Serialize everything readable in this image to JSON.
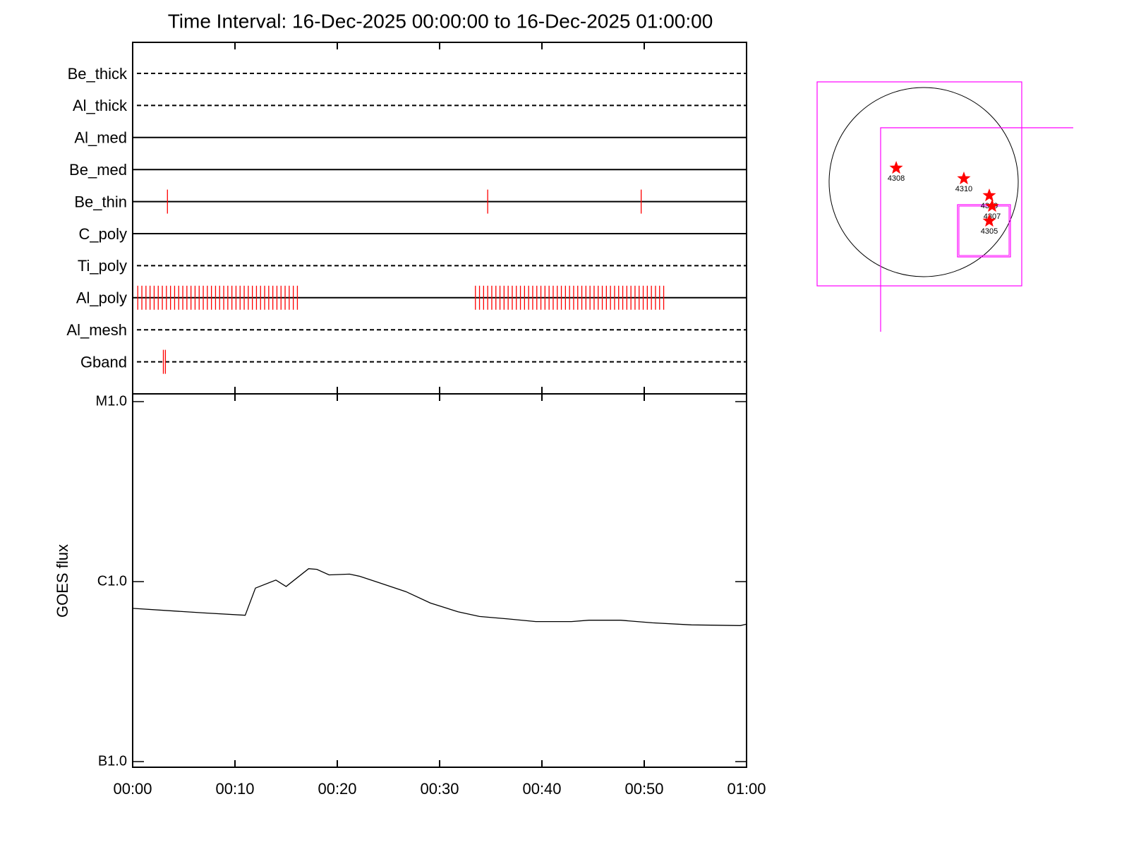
{
  "chart_data": [
    {
      "type": "timeline",
      "title": "Time Interval: 16-Dec-2025 00:00:00 to 16-Dec-2025 01:00:00",
      "categories": [
        "Be_thick",
        "Al_thick",
        "Al_med",
        "Be_med",
        "Be_thin",
        "C_poly",
        "Ti_poly",
        "Al_poly",
        "Al_mesh",
        "Gband"
      ],
      "line_styles": [
        "dashed",
        "dashed",
        "solid",
        "solid",
        "solid",
        "solid",
        "dashed",
        "solid",
        "dashed",
        "dashed"
      ],
      "color": "#ff0000",
      "events": [
        [],
        [],
        [],
        [],
        [
          3.4,
          34.7,
          49.7
        ],
        [],
        [],
        [
          0.5,
          0.9,
          1.3,
          1.7,
          2.1,
          2.5,
          2.9,
          3.3,
          3.7,
          4.1,
          4.5,
          4.9,
          5.3,
          5.7,
          6.1,
          6.5,
          6.9,
          7.3,
          7.7,
          8.1,
          8.5,
          8.9,
          9.3,
          9.7,
          10.1,
          10.5,
          10.9,
          11.3,
          11.7,
          12.1,
          12.5,
          12.9,
          13.3,
          13.7,
          14.1,
          14.5,
          14.9,
          15.3,
          15.7,
          16.1,
          33.5,
          33.9,
          34.3,
          34.7,
          35.1,
          35.5,
          35.9,
          36.3,
          36.7,
          37.1,
          37.5,
          37.9,
          38.3,
          38.7,
          39.1,
          39.5,
          39.9,
          40.3,
          40.7,
          41.1,
          41.5,
          41.9,
          42.3,
          42.7,
          43.1,
          43.5,
          43.9,
          44.3,
          44.7,
          45.1,
          45.5,
          45.9,
          46.3,
          46.7,
          47.1,
          47.5,
          47.9,
          48.3,
          48.7,
          49.1,
          49.5,
          49.9,
          50.3,
          50.7,
          51.1,
          51.5,
          51.9
        ],
        [],
        [
          3.0,
          3.2
        ]
      ],
      "xlim": [
        0,
        60
      ]
    },
    {
      "type": "line",
      "ylabel": "GOES flux",
      "color": "#000000",
      "log": true,
      "x": [
        0,
        7,
        11,
        12,
        14,
        15,
        17.2,
        18,
        19.2,
        21.2,
        22.2,
        24,
        26.7,
        29.1,
        31.8,
        33.9,
        36.7,
        39.4,
        42.9,
        44.6,
        47.7,
        50.8,
        54.6,
        59.4,
        60
      ],
      "values": [
        7.1e-07,
        6.7e-07,
        6.5e-07,
        9.2e-07,
        1.02e-06,
        9.4e-07,
        1.18e-06,
        1.17e-06,
        1.09e-06,
        1.1e-06,
        1.07e-06,
        9.9e-07,
        8.8e-07,
        7.6e-07,
        6.8e-07,
        6.4e-07,
        6.2e-07,
        6e-07,
        6e-07,
        6.1e-07,
        6.1e-07,
        5.9e-07,
        5.75e-07,
        5.7e-07,
        5.8e-07
      ],
      "xlim": [
        0,
        60
      ],
      "xticks": [
        {
          "value": 0,
          "label": "00:00"
        },
        {
          "value": 10,
          "label": "00:10"
        },
        {
          "value": 20,
          "label": "00:20"
        },
        {
          "value": 30,
          "label": "00:30"
        },
        {
          "value": 40,
          "label": "00:40"
        },
        {
          "value": 50,
          "label": "00:50"
        },
        {
          "value": 60,
          "label": "01:00"
        }
      ],
      "ylim": [
        1e-07,
        1e-05
      ],
      "yticks": [
        {
          "value": 1e-07,
          "label": "B1.0"
        },
        {
          "value": 1e-06,
          "label": "C1.0"
        },
        {
          "value": 1e-05,
          "label": "M1.0"
        }
      ]
    },
    {
      "type": "scatter",
      "color": "#ff0000",
      "labels": [
        "4308",
        "4310",
        "4309",
        "4307",
        "4305"
      ],
      "x": [
        -279,
        408,
        666,
        695,
        666
      ],
      "y": [
        143,
        36,
        -136,
        -244,
        -394
      ]
    }
  ]
}
